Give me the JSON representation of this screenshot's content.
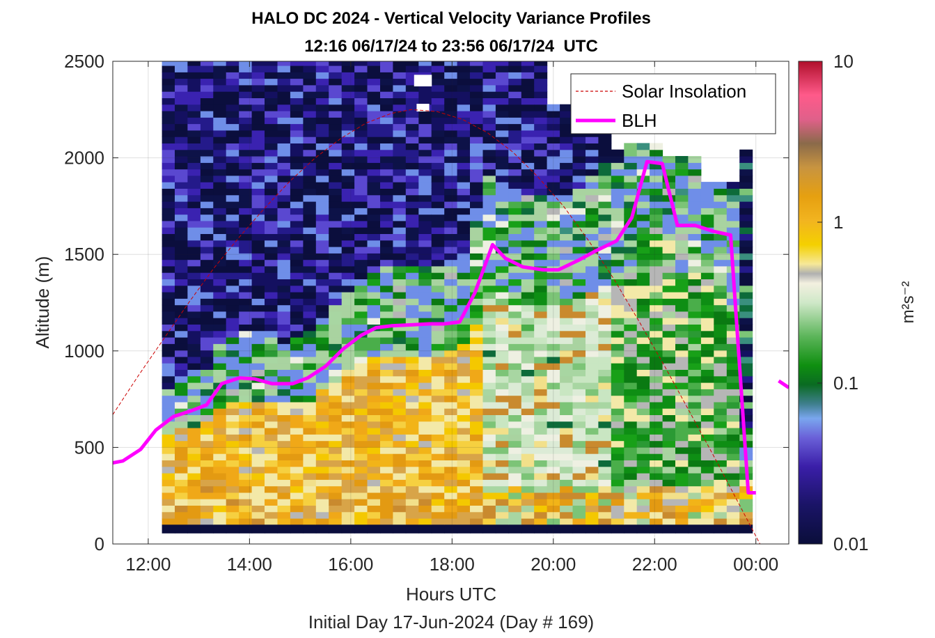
{
  "chart_data": {
    "type": "heatmap",
    "title": "HALO DC 2024 - Vertical Velocity Variance Profiles",
    "subtitle": "12:16 06/17/24 to 23:56 06/17/24  UTC",
    "xlabel": "Hours UTC",
    "xlabel2": "Initial Day 17-Jun-2024 (Day # 169)",
    "ylabel": "Altitude (m)",
    "colorbar_label": "m²s⁻²",
    "colorbar_scale": "log",
    "colorbar_range": [
      0.01,
      10
    ],
    "colorbar_ticks": [
      {
        "value": 0.01,
        "label": "0.01"
      },
      {
        "value": 0.1,
        "label": "0.1"
      },
      {
        "value": 1,
        "label": "1"
      },
      {
        "value": 10,
        "label": "10"
      }
    ],
    "xlim": [
      11.3,
      24.65
    ],
    "ylim": [
      0,
      2500
    ],
    "x_ticks": [
      {
        "value": 12,
        "label": "12:00"
      },
      {
        "value": 14,
        "label": "14:00"
      },
      {
        "value": 16,
        "label": "16:00"
      },
      {
        "value": 18,
        "label": "18:00"
      },
      {
        "value": 20,
        "label": "20:00"
      },
      {
        "value": 22,
        "label": "22:00"
      },
      {
        "value": 24,
        "label": "00:00"
      }
    ],
    "y_ticks": [
      {
        "value": 0,
        "label": "0"
      },
      {
        "value": 500,
        "label": "500"
      },
      {
        "value": 1000,
        "label": "1000"
      },
      {
        "value": 1500,
        "label": "1500"
      },
      {
        "value": 2000,
        "label": "2000"
      },
      {
        "value": 2500,
        "label": "2500"
      }
    ],
    "grid": true,
    "legend_position": "top-right",
    "heatmap_time_range": [
      12.27,
      23.93
    ],
    "heatmap_altitude_range": [
      100,
      2500
    ],
    "series": [
      {
        "name": "Solar Insolation",
        "style": "dashed",
        "color": "#cc0000",
        "x": [
          11.3,
          11.8,
          12.3,
          12.8,
          13.3,
          13.8,
          14.3,
          14.8,
          15.3,
          15.8,
          16.3,
          16.8,
          17.2,
          17.7,
          18.2,
          18.7,
          19.2,
          19.7,
          20.2,
          20.7,
          21.2,
          21.7,
          22.2,
          22.7,
          23.2,
          23.7,
          24.2,
          24.65
        ],
        "y": [
          670,
          870,
          1060,
          1250,
          1430,
          1590,
          1740,
          1880,
          2000,
          2100,
          2180,
          2230,
          2250,
          2240,
          2200,
          2130,
          2030,
          1900,
          1750,
          1570,
          1370,
          1150,
          920,
          680,
          440,
          190,
          -60,
          -300
        ]
      },
      {
        "name": "BLH",
        "style": "solid",
        "color": "#ff00ff",
        "x": [
          11.3,
          11.5,
          11.85,
          12.15,
          12.5,
          12.85,
          13.15,
          13.45,
          13.8,
          14.1,
          14.45,
          14.85,
          15.15,
          15.5,
          15.85,
          16.2,
          16.5,
          16.8,
          17.2,
          17.55,
          17.85,
          18.15,
          18.45,
          18.8,
          19.05,
          19.4,
          19.8,
          20.1,
          20.5,
          20.85,
          21.25,
          21.55,
          21.85,
          22.15,
          22.45,
          22.8,
          23.15,
          23.5,
          23.85,
          23.95,
          24.0
        ],
        "y": [
          420,
          430,
          490,
          590,
          660,
          690,
          720,
          830,
          860,
          855,
          830,
          830,
          860,
          920,
          1010,
          1080,
          1120,
          1130,
          1135,
          1140,
          1140,
          1150,
          1300,
          1550,
          1480,
          1435,
          1420,
          1420,
          1470,
          1520,
          1570,
          1690,
          1980,
          1970,
          1650,
          1650,
          1620,
          1600,
          265,
          265,
          265
        ]
      },
      {
        "name": "",
        "style": "solid",
        "color": "#ff00ff",
        "x": [
          24.45,
          24.65
        ],
        "y": [
          845,
          810
        ]
      }
    ]
  }
}
